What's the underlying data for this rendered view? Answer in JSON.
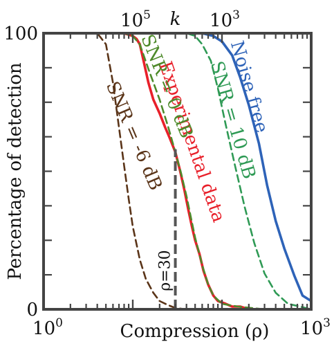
{
  "chart_data": {
    "type": "line",
    "xlabel": "Compression (ρ)",
    "ylabel": "Percentage of detection",
    "top_axis_label": "k",
    "xscale": "log",
    "xlim": [
      1,
      1000
    ],
    "ylim": [
      0,
      100
    ],
    "x_ticks": [
      {
        "value": 1,
        "base": "10",
        "exp": "0"
      },
      {
        "value": 1000,
        "base": "10",
        "exp": "3"
      }
    ],
    "y_ticks": [
      {
        "value": 0,
        "label": "0"
      },
      {
        "value": 100,
        "label": "100"
      }
    ],
    "top_ticks": [
      {
        "value": 10,
        "base": "10",
        "exp": "5"
      },
      {
        "value": 100,
        "base": "10",
        "exp": "3"
      }
    ],
    "grid": false,
    "series": [
      {
        "name": "Noise free",
        "color": "#2e63b8",
        "dash": "solid",
        "x": [
          1,
          20,
          60,
          80,
          100,
          130,
          160,
          200,
          260,
          320,
          400,
          500,
          650,
          800,
          1000
        ],
        "y": [
          100,
          100,
          100,
          99,
          97,
          92,
          84,
          74,
          60,
          45,
          32,
          22,
          12,
          5,
          3
        ]
      },
      {
        "name": "SNR = 10 dB",
        "color": "#2f9a55",
        "dash": "dashed",
        "x": [
          1,
          20,
          40,
          50,
          60,
          75,
          90,
          110,
          140,
          180,
          230,
          300,
          400,
          550,
          750,
          1000
        ],
        "y": [
          100,
          100,
          100,
          99,
          96,
          90,
          80,
          67,
          52,
          37,
          24,
          13,
          6,
          2,
          1,
          0
        ]
      },
      {
        "name": "Experimental data",
        "color": "#e8202a",
        "dash": "solid",
        "x": [
          1,
          8,
          10,
          11,
          12,
          13,
          15,
          17,
          20,
          23,
          26,
          30,
          34,
          38,
          42,
          46,
          50,
          56,
          62,
          70,
          80,
          90,
          110,
          130,
          160,
          200,
          300,
          400,
          600,
          1000
        ],
        "y": [
          100,
          100,
          99,
          98,
          96,
          91,
          82,
          76,
          71,
          66,
          62,
          57,
          50,
          43,
          36,
          30,
          25,
          20,
          14,
          9,
          5,
          3,
          2,
          1,
          1,
          0,
          0,
          0,
          0,
          0
        ]
      },
      {
        "name": "SNR = 0 dB",
        "color": "#4d8a2a",
        "dash": "dashed",
        "x": [
          1,
          8,
          10,
          12,
          15,
          20,
          25,
          30,
          35,
          40,
          45,
          50,
          60,
          70,
          80,
          100,
          150,
          300,
          1000
        ],
        "y": [
          100,
          100,
          99,
          96,
          87,
          76,
          66,
          57,
          49,
          41,
          33,
          26,
          16,
          9,
          5,
          2,
          1,
          0,
          0
        ]
      },
      {
        "name": "SNR = -6 dB",
        "color": "#5a3418",
        "dash": "dashed",
        "x": [
          1,
          4,
          5,
          6,
          7,
          8,
          9,
          10,
          12,
          14,
          17,
          20,
          25,
          30,
          40,
          60,
          100,
          1000
        ],
        "y": [
          100,
          100,
          96,
          82,
          66,
          52,
          40,
          30,
          18,
          11,
          6,
          3,
          1.5,
          0.5,
          0,
          0,
          0,
          0
        ]
      }
    ],
    "annotations": [
      {
        "text": "Noise free"
      },
      {
        "text": "SNR = 10 dB"
      },
      {
        "text": "Experimental data"
      },
      {
        "text": "SNR = 0 dB"
      },
      {
        "text": "SNR = -6 dB"
      },
      {
        "text": "ρ=30"
      }
    ],
    "marker_line": {
      "x": 30,
      "y_top": 58,
      "color": "#555555"
    }
  }
}
